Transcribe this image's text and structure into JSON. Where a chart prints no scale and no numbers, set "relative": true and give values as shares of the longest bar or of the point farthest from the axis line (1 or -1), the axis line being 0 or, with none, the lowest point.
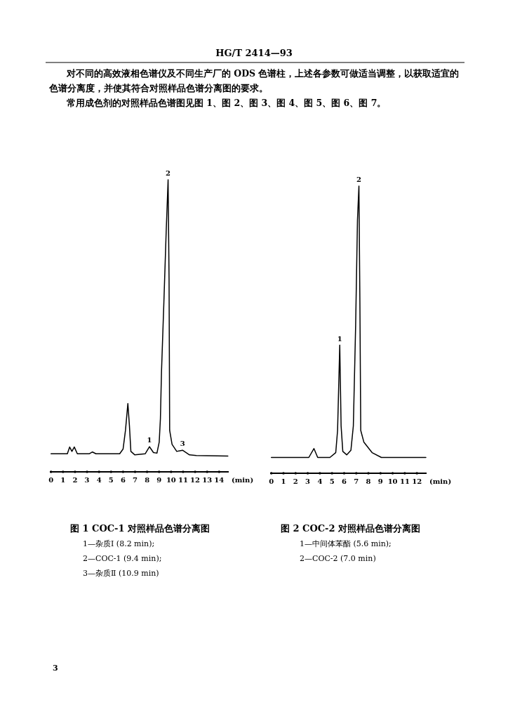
{
  "chart_data": [
    {
      "type": "line",
      "title": "图 1  COC-1 对照样品色谱分离图",
      "xlabel": "(min)",
      "relative": true,
      "xlim": [
        -0.1,
        14.8
      ],
      "xticks": [
        0,
        1,
        2,
        3,
        4,
        5,
        6,
        7,
        8,
        9,
        10,
        11,
        12,
        13,
        14
      ],
      "series": [
        {
          "color": "#000000",
          "x": [
            0,
            1.36,
            1.55,
            1.74,
            1.94,
            2.19,
            3.2,
            3.45,
            3.74,
            5.72,
            6.0,
            6.2,
            6.4,
            6.53,
            6.65,
            6.98,
            7.85,
            8.2,
            8.53,
            8.82,
            9.01,
            9.11,
            9.2,
            9.4,
            9.59,
            9.75,
            9.83,
            9.88,
            10.08,
            10.47,
            10.95,
            11.53,
            12.1,
            14.73
          ],
          "values": [
            0.062,
            0.062,
            0.085,
            0.07,
            0.085,
            0.062,
            0.062,
            0.068,
            0.062,
            0.062,
            0.078,
            0.142,
            0.234,
            0.158,
            0.07,
            0.058,
            0.062,
            0.086,
            0.066,
            0.064,
            0.102,
            0.182,
            0.342,
            0.582,
            0.822,
            1.0,
            0.662,
            0.142,
            0.094,
            0.07,
            0.074,
            0.058,
            0.056,
            0.054
          ]
        }
      ],
      "annotations": [
        "HG/T 2414—93",
        "对不同的高效液相色谱仪及不同生产厂的 ODS 色谱柱，上述各参数可做适当调整，以获取适宜的色谱分离度，并使其符合对照样品色谱分离图的要求。",
        "常用成色剂的对照样品色谱图见图 1、图 2、图 3、图 4、图 5、图 6、图 7。",
        {
          "text": "1",
          "x": 8.2,
          "y": 0.086
        },
        {
          "text": "2",
          "x": 9.75,
          "y": 1.0
        },
        {
          "text": "3",
          "x": 10.95,
          "y": 0.074
        },
        "1—杂质Ⅰ (8.2 min);",
        "2—COC-1 (9.4 min);",
        "3—杂质Ⅱ (10.9 min)"
      ]
    },
    {
      "type": "line",
      "title": "图 2  COC-2 对照样品色谱分离图",
      "xlabel": "(min)",
      "relative": true,
      "xlim": [
        -0.1,
        12.8
      ],
      "xticks": [
        0,
        1,
        2,
        3,
        4,
        5,
        6,
        7,
        8,
        9,
        10,
        11,
        12
      ],
      "series": [
        {
          "color": "#000000",
          "x": [
            0,
            3.09,
            3.51,
            3.82,
            4.83,
            5.31,
            5.46,
            5.64,
            5.75,
            5.89,
            6.22,
            6.56,
            6.76,
            6.95,
            7.1,
            7.22,
            7.3,
            7.37,
            7.63,
            8.3,
            9.07,
            12.74
          ],
          "values": [
            0.055,
            0.055,
            0.086,
            0.055,
            0.055,
            0.072,
            0.149,
            0.446,
            0.165,
            0.076,
            0.064,
            0.08,
            0.165,
            0.515,
            0.882,
            1.0,
            0.597,
            0.149,
            0.108,
            0.072,
            0.055,
            0.055
          ]
        }
      ],
      "annotations": [
        {
          "text": "1",
          "x": 5.64,
          "y": 0.446
        },
        {
          "text": "2",
          "x": 7.22,
          "y": 1.0
        },
        "1—中间体苯酯 (5.6 min);",
        "2—COC-2 (7.0 min)",
        "3"
      ]
    }
  ]
}
